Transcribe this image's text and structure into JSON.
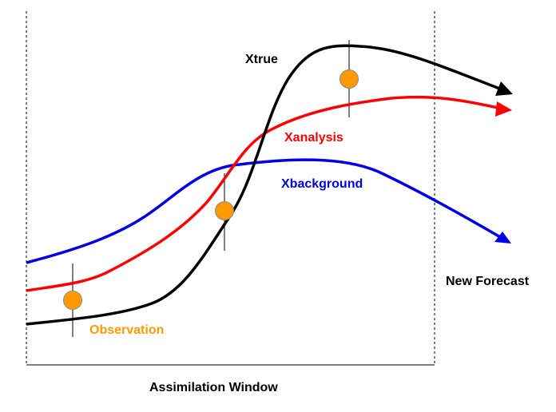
{
  "labels": {
    "xtrue": "Xtrue",
    "xanalysis": "Xanalysis",
    "xbackground": "Xbackground",
    "observation": "Observation",
    "new_forecast": "New Forecast",
    "assimilation_window": "Assimilation Window"
  },
  "colors": {
    "xtrue": "#000000",
    "xanalysis": "#ff0000",
    "xbackground": "#0000e6",
    "observation_fill": "#ff9900",
    "observation_stroke": "#888888",
    "observation_label": "#ff9900",
    "text": "#000000",
    "window_border": "#000000"
  },
  "observations": {
    "count": 3
  }
}
